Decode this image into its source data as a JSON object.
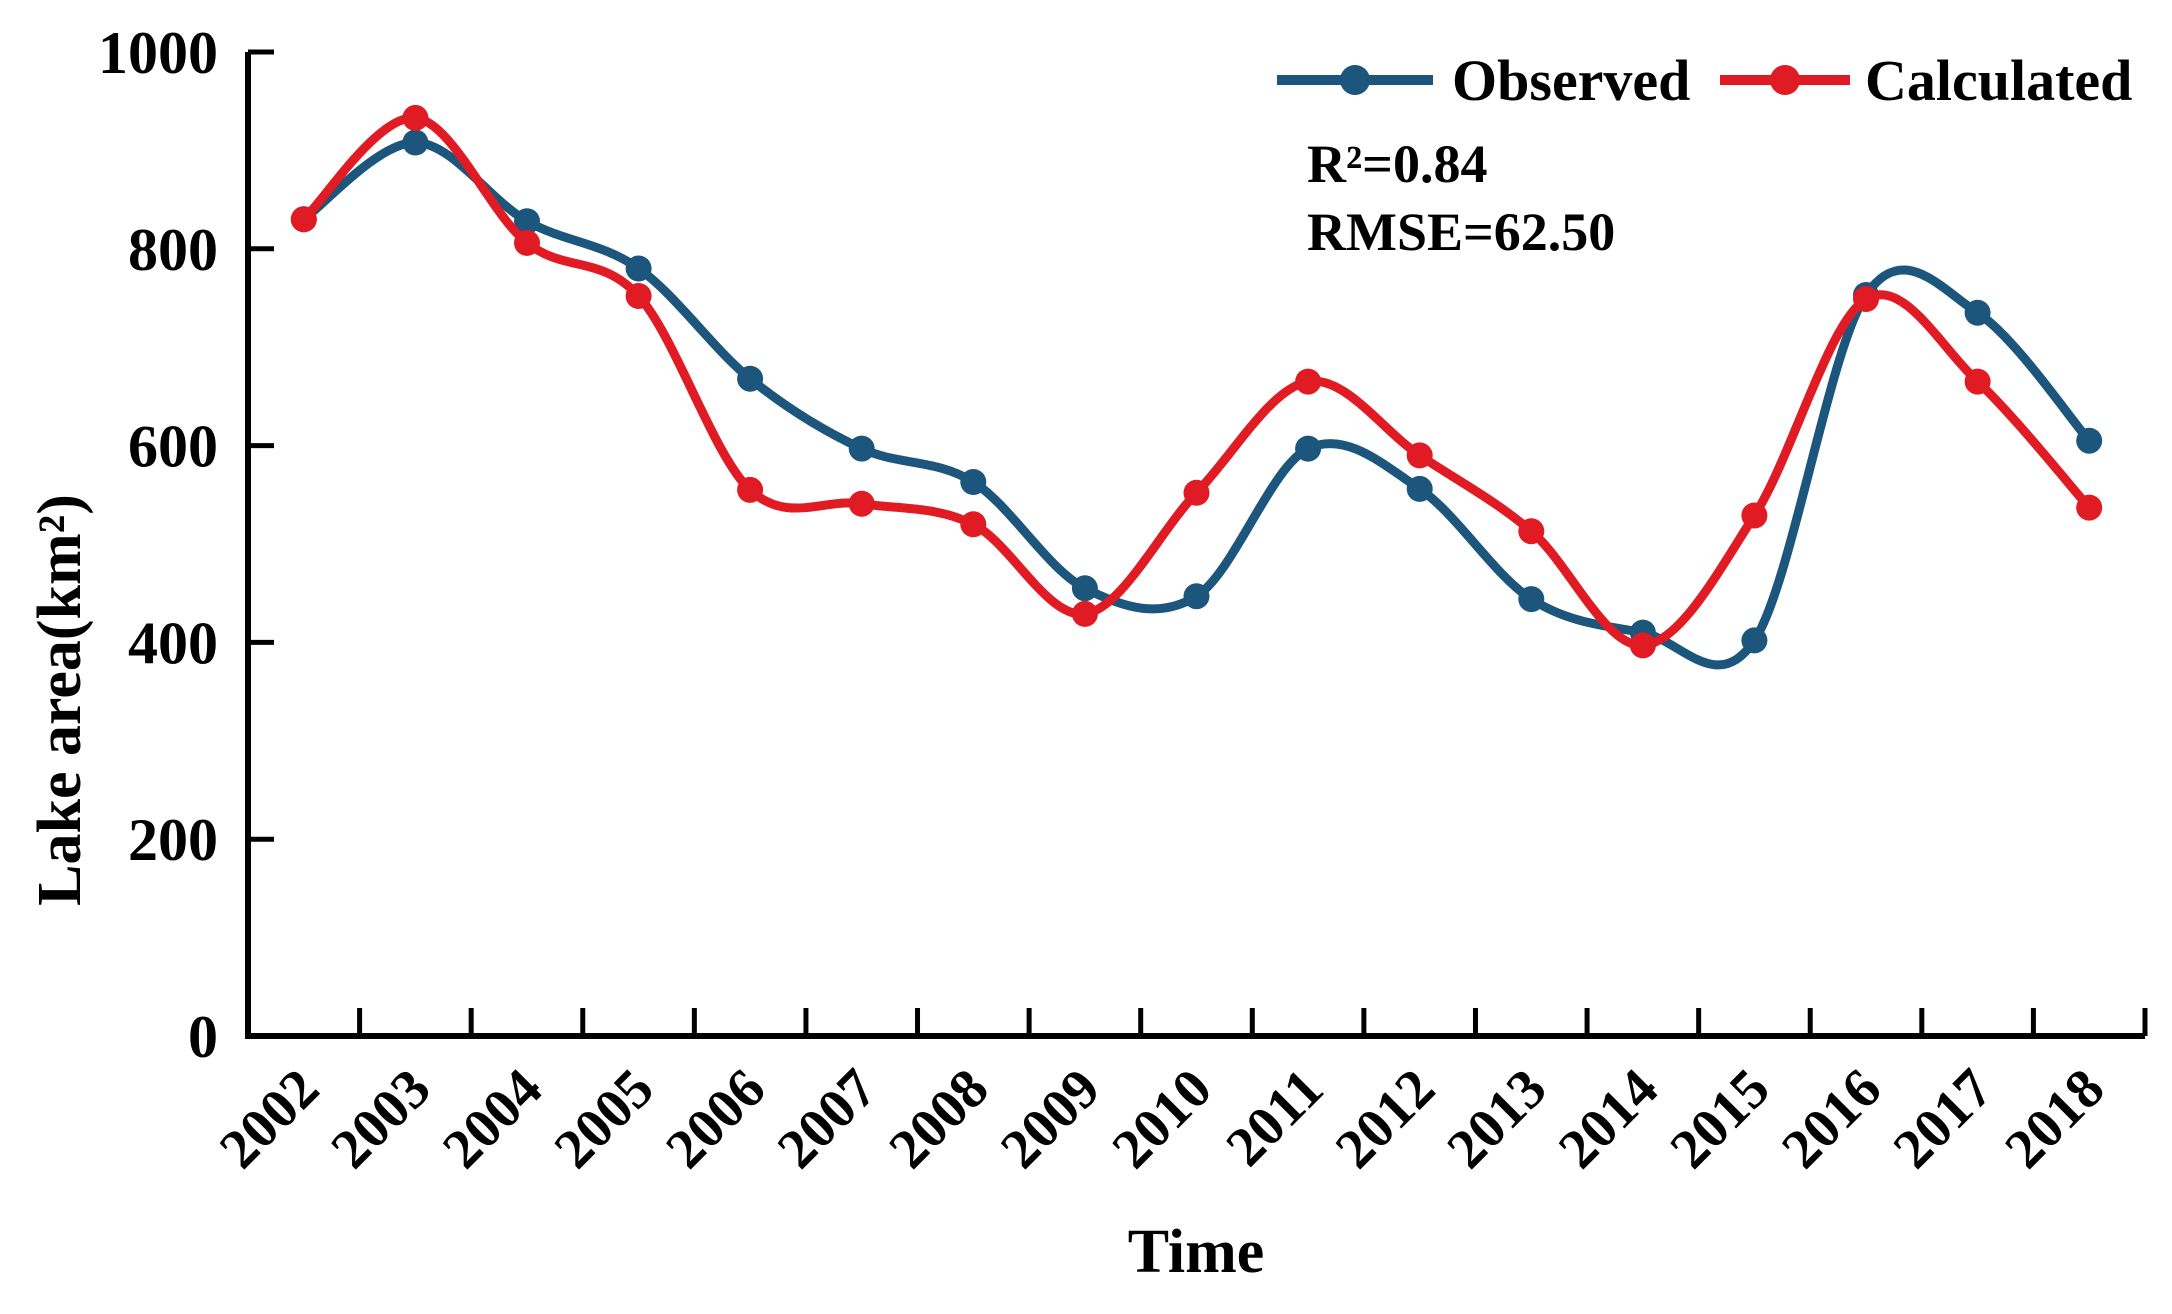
{
  "chart_data": {
    "type": "line",
    "title": "",
    "xlabel": "Time",
    "ylabel": "Lake area(km²)",
    "ylim": [
      0,
      1000
    ],
    "yticks": [
      0,
      200,
      400,
      600,
      800,
      1000
    ],
    "categories": [
      "2002",
      "2003",
      "2004",
      "2005",
      "2006",
      "2007",
      "2008",
      "2009",
      "2010",
      "2011",
      "2012",
      "2013",
      "2014",
      "2015",
      "2016",
      "2017",
      "2018"
    ],
    "series": [
      {
        "name": "Observed",
        "color": "#1d567d",
        "marker": "circle",
        "values": [
          830,
          908,
          828,
          780,
          668,
          597,
          563,
          455,
          447,
          597,
          556,
          444,
          410,
          402,
          753,
          735,
          605
        ]
      },
      {
        "name": "Calculated",
        "color": "#e01b23",
        "marker": "circle",
        "values": [
          830,
          933,
          806,
          752,
          555,
          541,
          520,
          429,
          552,
          665,
          590,
          513,
          397,
          529,
          749,
          665,
          537
        ]
      }
    ],
    "annotations": [
      {
        "id": "r2",
        "text": "R²=0.84"
      },
      {
        "id": "rmse",
        "text": "RMSE=62.50"
      }
    ],
    "legend_position": "top-right",
    "grid": false,
    "smooth": true,
    "axis_color": "#000000",
    "background": "#ffffff"
  }
}
